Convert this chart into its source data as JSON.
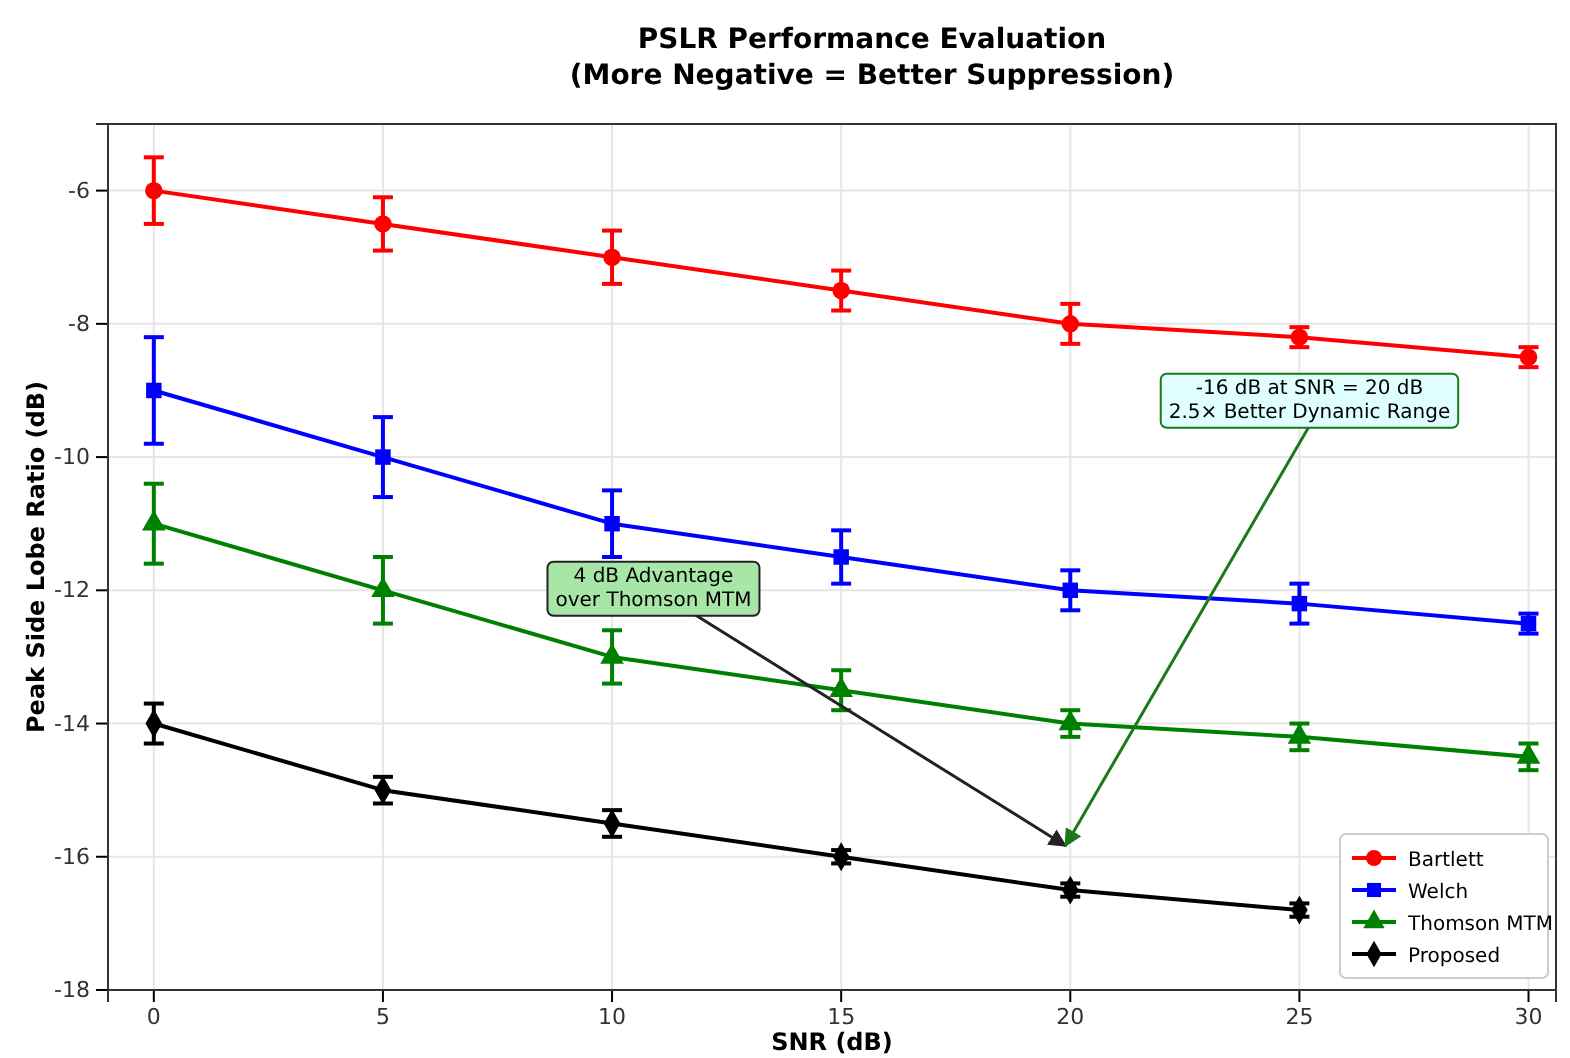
{
  "chart_data": {
    "type": "line",
    "title": "PSLR Performance Evaluation\n(More Negative = Better Suppression)",
    "xlabel": "SNR (dB)",
    "ylabel": "Peak Side Lobe Ratio (dB)",
    "x": [
      0,
      5,
      10,
      15,
      20,
      25,
      30
    ],
    "series": [
      {
        "name": "Bartlett",
        "color": "#ff0000",
        "marker": "circle",
        "values": [
          -6,
          -6.5,
          -7,
          -7.5,
          -8,
          -8.2,
          -8.5
        ],
        "errors": [
          0.5,
          0.4,
          0.4,
          0.3,
          0.3,
          0.15,
          0.15
        ]
      },
      {
        "name": "Welch",
        "color": "#0000ff",
        "marker": "square",
        "values": [
          -9,
          -10,
          -11,
          -11.5,
          -12,
          -12.2,
          -12.5
        ],
        "errors": [
          0.8,
          0.6,
          0.5,
          0.4,
          0.3,
          0.3,
          0.15
        ]
      },
      {
        "name": "Thomson MTM",
        "color": "#008000",
        "marker": "triangle",
        "values": [
          -11,
          -12,
          -13,
          -13.5,
          -14,
          -14.2,
          -14.5
        ],
        "errors": [
          0.6,
          0.5,
          0.4,
          0.3,
          0.2,
          0.2,
          0.2
        ]
      },
      {
        "name": "Proposed",
        "color": "#000000",
        "marker": "diamond",
        "values": [
          -14,
          -15,
          -15.5,
          -16,
          -16.5,
          -16.8,
          null
        ],
        "errors": [
          0.3,
          0.2,
          0.2,
          0.1,
          0.1,
          0.1,
          null
        ]
      }
    ],
    "xlim": [
      -1,
      30.6
    ],
    "xticks": [
      0,
      5,
      10,
      15,
      20,
      25,
      30
    ],
    "ylim": [
      -18,
      -5
    ],
    "yticks": [
      -18,
      -16,
      -14,
      -12,
      -10,
      -8,
      -6
    ],
    "grid": true,
    "legend": "bottom right",
    "line_style": "solid",
    "annotations": [
      "4 dB Advantage\nover Thomson MTM",
      "-16 dB at SNR = 20 dB\n2.5× Better Dynamic Range"
    ]
  }
}
